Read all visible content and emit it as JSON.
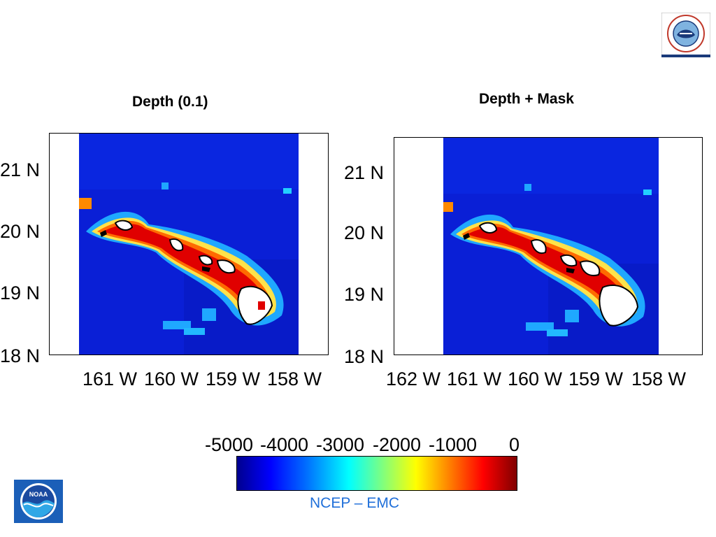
{
  "logos": {
    "nws": "National Weather Service",
    "noaa": "NOAA"
  },
  "panels": [
    {
      "title": "Depth (0.1)",
      "y_ticks": [
        "21 N",
        "20 N",
        "19 N",
        "18 N"
      ],
      "x_ticks": [
        "161 W",
        "160 W",
        "159 W",
        "158 W"
      ]
    },
    {
      "title": "Depth + Mask",
      "y_ticks": [
        "21 N",
        "20 N",
        "19 N",
        "18 N"
      ],
      "x_ticks": [
        "162 W",
        "161 W",
        "160 W",
        "159 W",
        "158 W"
      ]
    }
  ],
  "colorbar": {
    "labels": [
      "-5000",
      "-4000",
      "-3000",
      "-2000",
      "-1000",
      "0"
    ],
    "range": [
      -5000,
      0
    ]
  },
  "footer": {
    "text": "NCEP – EMC"
  },
  "colors": {
    "deep": "#0000cc",
    "shallow": "#ff0000",
    "land": "#ffffff",
    "footer_text": "#1f6fd9"
  }
}
